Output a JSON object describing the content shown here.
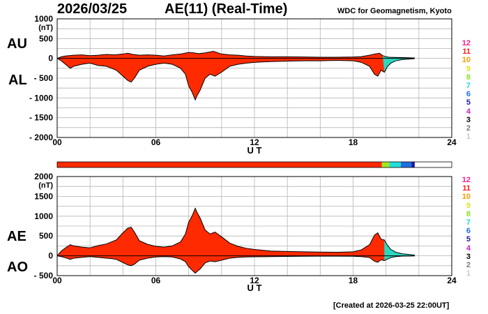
{
  "header": {
    "date": "2026/03/25",
    "title": "AE(11) (Real-Time)",
    "org": "WDC for Geomagnetism, Kyoto"
  },
  "footer": {
    "created": "[Created at 2026-03-25 22:00UT]"
  },
  "colors": {
    "fill_main": "#ff2a00",
    "outline": "#000000",
    "grid": "#b4b4b4",
    "status_bar": [
      {
        "from": 0,
        "to": 19.75,
        "color": "#ff2a00"
      },
      {
        "from": 19.75,
        "to": 20.2,
        "color": "#a6e81c"
      },
      {
        "from": 20.2,
        "to": 20.9,
        "color": "#22e0d8"
      },
      {
        "from": 20.9,
        "to": 21.55,
        "color": "#1f6fe0"
      },
      {
        "from": 21.55,
        "to": 21.75,
        "color": "#1a1a9c"
      },
      {
        "from": 21.75,
        "to": 24,
        "color": "#ffffff"
      }
    ]
  },
  "kp_scale": [
    {
      "label": "12",
      "color": "#ff1c8c"
    },
    {
      "label": "11",
      "color": "#ff1a1a"
    },
    {
      "label": "10",
      "color": "#ff9a00"
    },
    {
      "label": "9",
      "color": "#e2e21c"
    },
    {
      "label": "8",
      "color": "#88e21c"
    },
    {
      "label": "7",
      "color": "#1cd8d8"
    },
    {
      "label": "6",
      "color": "#1c6ee8"
    },
    {
      "label": "5",
      "color": "#1c1ca0"
    },
    {
      "label": "4",
      "color": "#c81cc8"
    },
    {
      "label": "3",
      "color": "#000000"
    },
    {
      "label": "2",
      "color": "#7a7a7a"
    },
    {
      "label": "1",
      "color": "#c8c8c8"
    }
  ],
  "chart_data": [
    {
      "type": "area",
      "title": "AU / AL",
      "labels": {
        "upper": "AU",
        "lower": "AL"
      },
      "ylabel": "(nT)",
      "xlabel": "U T",
      "xlim": [
        0,
        24
      ],
      "ylim": [
        -2000,
        1000
      ],
      "yticks": [
        "1000",
        "500",
        "0",
        "- 500",
        "- 1000",
        "- 1500",
        "- 2000"
      ],
      "ytick_values": [
        1000,
        500,
        0,
        -500,
        -1000,
        -1500,
        -2000
      ],
      "xticks": [
        "00",
        "06",
        "12",
        "18",
        "24"
      ],
      "xtick_values": [
        0,
        6,
        12,
        18,
        24
      ],
      "grid": true,
      "data_end": 21.75,
      "series": [
        {
          "name": "AU",
          "t": [
            0,
            0.25,
            0.5,
            1,
            1.5,
            2,
            2.5,
            3,
            3.5,
            4,
            4.3,
            4.6,
            5,
            5.5,
            6,
            6.5,
            7,
            7.5,
            8,
            8.3,
            8.6,
            9,
            9.5,
            10,
            10.5,
            11,
            11.5,
            12,
            13,
            14,
            15,
            16,
            17,
            18,
            18.5,
            19,
            19.3,
            19.6,
            19.8,
            20,
            20.2,
            20.5,
            21,
            21.5,
            21.75
          ],
          "values": [
            0,
            40,
            60,
            80,
            90,
            70,
            80,
            100,
            90,
            110,
            130,
            100,
            80,
            90,
            80,
            60,
            90,
            110,
            150,
            140,
            120,
            140,
            180,
            110,
            90,
            80,
            60,
            50,
            40,
            40,
            35,
            30,
            30,
            35,
            45,
            80,
            110,
            130,
            70,
            40,
            30,
            25,
            20,
            15,
            10
          ]
        },
        {
          "name": "AL",
          "t": [
            0,
            0.25,
            0.5,
            0.8,
            1,
            1.5,
            2,
            2.5,
            3,
            3.3,
            3.6,
            4,
            4.3,
            4.5,
            4.7,
            5,
            5.5,
            6,
            6.5,
            7,
            7.5,
            7.8,
            8,
            8.2,
            8.4,
            8.5,
            8.7,
            9,
            9.3,
            9.6,
            10,
            10.5,
            11,
            11.5,
            12,
            13,
            14,
            15,
            16,
            17,
            18,
            18.5,
            19,
            19.3,
            19.5,
            19.7,
            19.9,
            20.1,
            20.3,
            20.6,
            21,
            21.5,
            21.75
          ],
          "values": [
            0,
            -60,
            -150,
            -250,
            -200,
            -150,
            -120,
            -180,
            -200,
            -250,
            -300,
            -450,
            -560,
            -600,
            -500,
            -300,
            -200,
            -150,
            -120,
            -150,
            -250,
            -400,
            -700,
            -850,
            -1050,
            -950,
            -800,
            -500,
            -400,
            -450,
            -350,
            -200,
            -150,
            -120,
            -100,
            -80,
            -70,
            -60,
            -60,
            -50,
            -60,
            -100,
            -200,
            -400,
            -450,
            -300,
            -350,
            -200,
            -120,
            -60,
            -30,
            -15,
            -5
          ]
        }
      ]
    },
    {
      "type": "area",
      "title": "AE / AO",
      "labels": {
        "upper": "AE",
        "lower": "AO"
      },
      "ylabel": "(nT)",
      "xlabel": "U T",
      "xlim": [
        0,
        24
      ],
      "ylim": [
        -500,
        2000
      ],
      "yticks": [
        "2000",
        "1500",
        "1000",
        "500",
        "0",
        "- 500"
      ],
      "ytick_values": [
        2000,
        1500,
        1000,
        500,
        0,
        -500
      ],
      "xticks": [
        "00",
        "06",
        "12",
        "18",
        "24"
      ],
      "xtick_values": [
        0,
        6,
        12,
        18,
        24
      ],
      "grid": true,
      "data_end": 21.75,
      "series": [
        {
          "name": "AE",
          "t": [
            0,
            0.25,
            0.5,
            0.8,
            1,
            1.5,
            2,
            2.5,
            3,
            3.3,
            3.6,
            4,
            4.3,
            4.5,
            4.7,
            5,
            5.5,
            6,
            6.5,
            7,
            7.5,
            7.8,
            8,
            8.2,
            8.4,
            8.5,
            8.7,
            9,
            9.3,
            9.6,
            10,
            10.5,
            11,
            11.5,
            12,
            13,
            14,
            15,
            16,
            17,
            18,
            18.5,
            19,
            19.3,
            19.5,
            19.7,
            19.9,
            20.1,
            20.3,
            20.6,
            21,
            21.5,
            21.75
          ],
          "values": [
            0,
            120,
            200,
            280,
            250,
            220,
            200,
            260,
            300,
            350,
            400,
            580,
            700,
            720,
            600,
            380,
            290,
            240,
            220,
            250,
            350,
            550,
            850,
            1000,
            1200,
            1100,
            950,
            650,
            550,
            600,
            480,
            320,
            240,
            190,
            160,
            120,
            110,
            100,
            95,
            90,
            100,
            150,
            280,
            520,
            580,
            420,
            400,
            260,
            160,
            90,
            50,
            30,
            15
          ]
        },
        {
          "name": "AO",
          "t": [
            0,
            0.25,
            0.5,
            0.8,
            1,
            1.5,
            2,
            2.5,
            3,
            3.3,
            3.6,
            4,
            4.3,
            4.5,
            4.7,
            5,
            5.5,
            6,
            6.5,
            7,
            7.5,
            7.8,
            8,
            8.2,
            8.4,
            8.5,
            8.7,
            9,
            9.3,
            9.6,
            10,
            10.5,
            11,
            11.5,
            12,
            13,
            14,
            15,
            16,
            17,
            18,
            18.5,
            19,
            19.3,
            19.5,
            19.7,
            19.9,
            20.1,
            20.3,
            20.6,
            21,
            21.5,
            21.75
          ],
          "values": [
            0,
            -20,
            -50,
            -90,
            -60,
            -40,
            -20,
            -40,
            -60,
            -70,
            -90,
            -170,
            -230,
            -250,
            -210,
            -110,
            -60,
            -30,
            -20,
            -30,
            -80,
            -150,
            -275,
            -360,
            -440,
            -400,
            -330,
            -180,
            -130,
            -150,
            -110,
            -60,
            -40,
            -30,
            -25,
            -20,
            -15,
            -12,
            -10,
            -10,
            -12,
            -20,
            -45,
            -135,
            -165,
            -100,
            -120,
            -80,
            -45,
            -20,
            -8,
            -4,
            -2
          ]
        }
      ]
    }
  ]
}
